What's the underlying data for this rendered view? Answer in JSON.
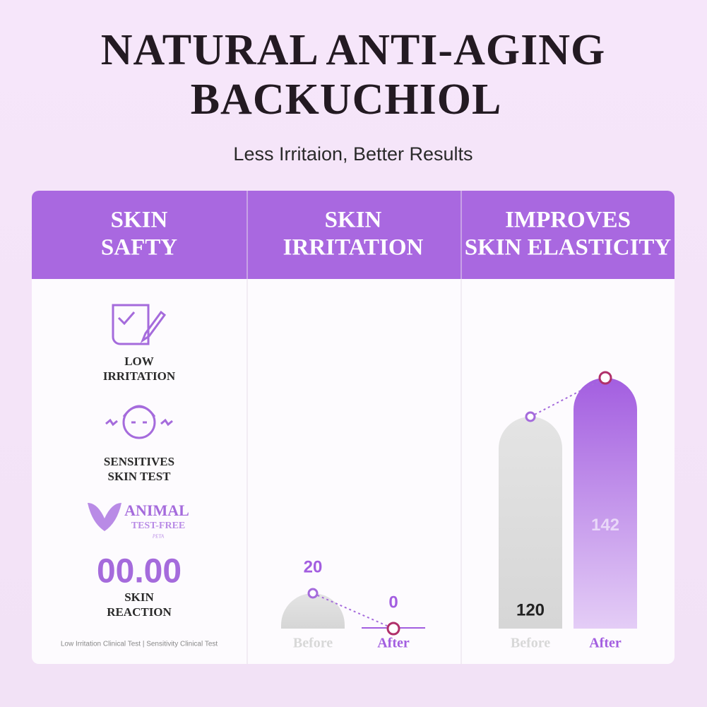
{
  "header": {
    "title": [
      "NATURAL ANTI-AGING",
      "BACKUCHIOL"
    ],
    "subtitle": "Less Irritaion, Better Results"
  },
  "panels": [
    {
      "heading": [
        "SKIN",
        "SAFTY"
      ],
      "items": [
        {
          "label": [
            "LOW",
            "IRRITATION"
          ]
        },
        {
          "label": [
            "SENSITIVES",
            "SKIN TEST"
          ]
        }
      ],
      "badge": [
        "ANIMAL",
        "TEST-FREE",
        "PETA"
      ],
      "stat": {
        "value": "00.00",
        "label": [
          "SKIN",
          "REACTION"
        ]
      },
      "footnote": "Low Irritation Clinical Test | Sensitivity Clinical Test"
    },
    {
      "heading": [
        "SKIN",
        "IRRITATION"
      ],
      "chart": {
        "type": "bar",
        "categories": [
          "Before",
          "After"
        ],
        "values": [
          20,
          0
        ]
      }
    },
    {
      "heading": [
        "IMPROVES",
        "SKIN ELASTICITY"
      ],
      "chart": {
        "type": "bar",
        "categories": [
          "Before",
          "After"
        ],
        "values": [
          120,
          142
        ]
      }
    }
  ]
}
